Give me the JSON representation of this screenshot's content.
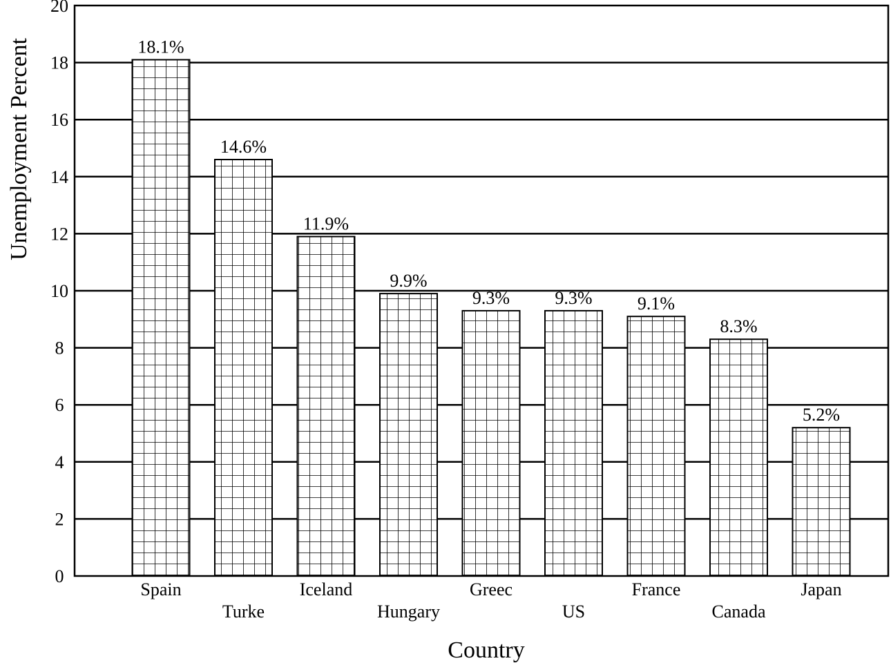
{
  "chart_data": {
    "type": "bar",
    "categories": [
      "Spain",
      "Turke",
      "Iceland",
      "Hungary",
      "Greec",
      "US",
      "France",
      "Canada",
      "Japan"
    ],
    "values": [
      18.1,
      14.6,
      11.9,
      9.9,
      9.3,
      9.3,
      9.1,
      8.3,
      5.2
    ],
    "data_labels": [
      "18.1%",
      "14.6%",
      "11.9%",
      "9.9%",
      "9.3%",
      "9.3%",
      "9.1%",
      "8.3%",
      "5.2%"
    ],
    "xlabel": "Country",
    "ylabel": "Unemployment Percent",
    "ylim": [
      0,
      20
    ],
    "yticks": [
      "0",
      "2",
      "4",
      "6",
      "8",
      "10",
      "12",
      "14",
      "16",
      "18",
      "20"
    ],
    "grid": "horizontal",
    "bar_pattern": "crosshatch-grid",
    "colors": {
      "bar_fill": "#ffffff",
      "stroke": "#000000"
    }
  }
}
